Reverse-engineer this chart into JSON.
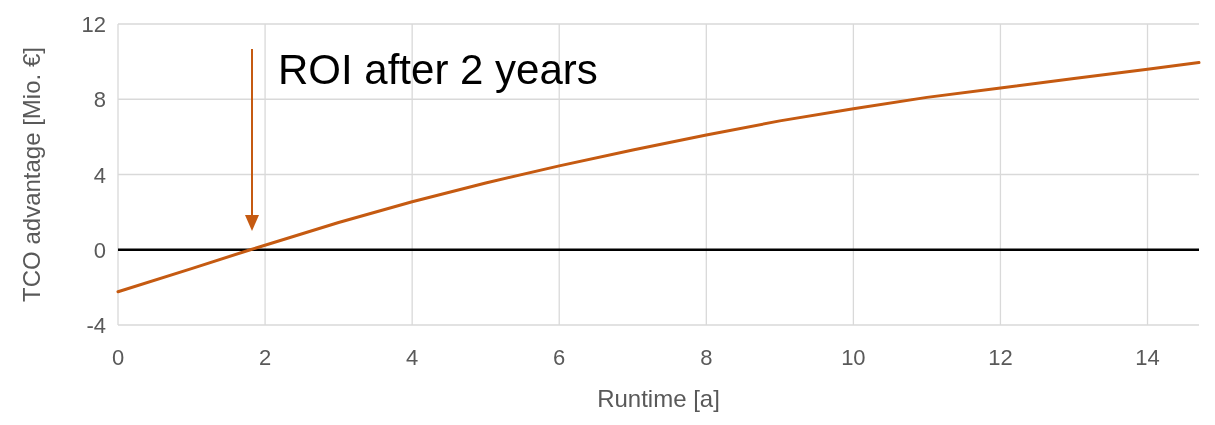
{
  "chart_data": {
    "type": "line",
    "xlabel": "Runtime [a]",
    "ylabel": "TCO advantage  [Mio. €]",
    "x": [
      0,
      1,
      1.8,
      3,
      4,
      5,
      6,
      7,
      8,
      9,
      10,
      11,
      12,
      13,
      14,
      14.7
    ],
    "series": [
      {
        "color": "#c55a11",
        "values": [
          -2.23,
          -1.0,
          0,
          1.45,
          2.55,
          3.55,
          4.46,
          5.3,
          6.1,
          6.85,
          7.5,
          8.1,
          8.6,
          9.1,
          9.6,
          9.95
        ]
      }
    ],
    "xlim": [
      0,
      14.7
    ],
    "ylim": [
      -4,
      12
    ],
    "xticks": [
      0,
      2,
      4,
      6,
      8,
      10,
      12,
      14
    ],
    "yticks": [
      -4,
      0,
      4,
      8,
      12
    ],
    "grid": true,
    "marker": "none",
    "line_style": "solid",
    "ref_lines": [
      {
        "axis": "y",
        "value": 0,
        "color": "#000000"
      }
    ],
    "annotations": [
      "ROI after 2 years"
    ]
  }
}
